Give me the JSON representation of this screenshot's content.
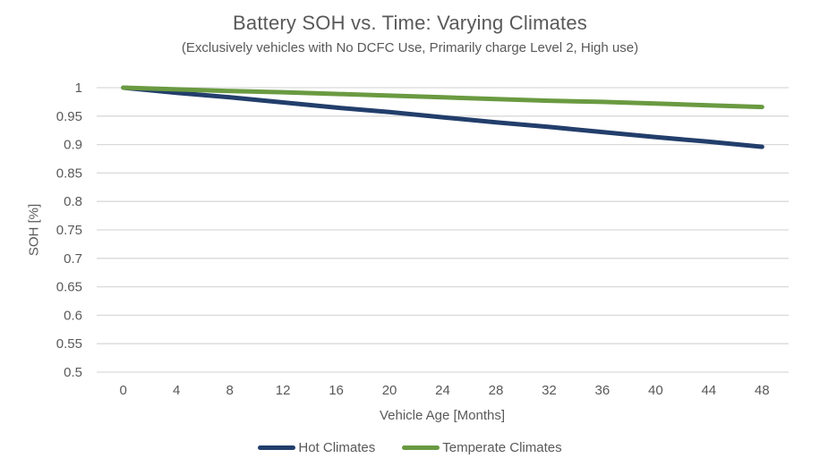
{
  "title": "Battery SOH vs. Time: Varying Climates",
  "subtitle": "(Exclusively vehicles with No DCFC Use, Primarily charge Level 2, High use)",
  "colors": {
    "hot_climates": "#223E6B",
    "temperate_climates": "#6A9A41",
    "gridline": "#D9D9D9",
    "text": "#595959",
    "background": "#FFFFFF"
  },
  "chart_data": {
    "type": "line",
    "title": "Battery SOH vs. Time: Varying Climates",
    "subtitle": "(Exclusively vehicles with No DCFC Use, Primarily charge Level 2, High use)",
    "xlabel": "Vehicle Age [Months]",
    "ylabel": "SOH [%]",
    "x": [
      0,
      4,
      8,
      12,
      16,
      20,
      24,
      28,
      32,
      36,
      40,
      44,
      48
    ],
    "series": [
      {
        "name": "Hot Climates",
        "color": "#223E6B",
        "values": [
          1.0,
          0.991,
          0.983,
          0.974,
          0.965,
          0.957,
          0.948,
          0.939,
          0.931,
          0.922,
          0.913,
          0.905,
          0.896
        ]
      },
      {
        "name": "Temperate Climates",
        "color": "#6A9A41",
        "values": [
          1.0,
          0.997,
          0.994,
          0.992,
          0.989,
          0.986,
          0.983,
          0.98,
          0.977,
          0.975,
          0.972,
          0.969,
          0.966
        ]
      }
    ],
    "xlim": [
      0,
      48
    ],
    "ylim": [
      0.5,
      1.0
    ],
    "x_ticks": [
      "0",
      "4",
      "8",
      "12",
      "16",
      "20",
      "24",
      "28",
      "32",
      "36",
      "40",
      "44",
      "48"
    ],
    "y_ticks": [
      "1",
      "0.95",
      "0.9",
      "0.85",
      "0.8",
      "0.75",
      "0.7",
      "0.65",
      "0.6",
      "0.55",
      "0.5"
    ],
    "grid": "horizontal-only",
    "legend_position": "bottom-center"
  },
  "legend": {
    "items": [
      {
        "label": "Hot Climates",
        "color": "#223E6B"
      },
      {
        "label": "Temperate Climates",
        "color": "#6A9A41"
      }
    ]
  }
}
